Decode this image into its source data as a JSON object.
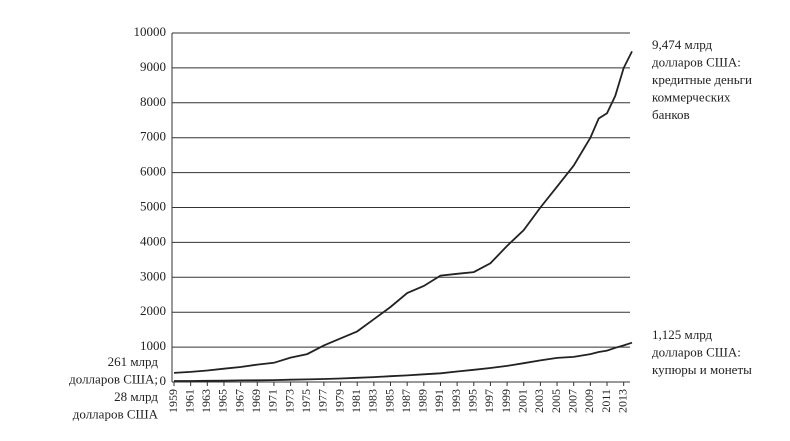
{
  "chart_data": {
    "type": "line",
    "x": [
      1959,
      1961,
      1963,
      1965,
      1967,
      1969,
      1971,
      1973,
      1975,
      1977,
      1979,
      1981,
      1983,
      1985,
      1987,
      1989,
      1991,
      1993,
      1995,
      1997,
      1999,
      2001,
      2003,
      2005,
      2007,
      2009,
      2010,
      2011,
      2012,
      2013,
      2014
    ],
    "series": [
      {
        "color": "#222222",
        "values": [
          261,
          290,
          330,
          380,
          430,
          500,
          550,
          700,
          800,
          1050,
          1250,
          1450,
          1800,
          2150,
          2550,
          2750,
          3050,
          3100,
          3150,
          3400,
          3900,
          4350,
          5000,
          5600,
          6200,
          7000,
          7550,
          7700,
          8200,
          9000,
          9474
        ]
      },
      {
        "color": "#222222",
        "values": [
          28,
          30,
          35,
          40,
          45,
          50,
          55,
          65,
          75,
          85,
          100,
          120,
          140,
          165,
          190,
          220,
          250,
          300,
          350,
          400,
          460,
          540,
          620,
          690,
          720,
          800,
          860,
          900,
          980,
          1050,
          1125
        ]
      }
    ],
    "xlim": [
      1959,
      2014
    ],
    "xticks": [
      1959,
      1961,
      1963,
      1965,
      1967,
      1969,
      1971,
      1973,
      1975,
      1977,
      1979,
      1981,
      1983,
      1985,
      1987,
      1989,
      1991,
      1993,
      1995,
      1997,
      1999,
      2001,
      2003,
      2005,
      2007,
      2009,
      2011,
      2013
    ],
    "ylim": [
      0,
      10000
    ],
    "yticks": [
      0,
      1000,
      2000,
      3000,
      4000,
      5000,
      6000,
      7000,
      8000,
      9000,
      10000
    ],
    "grid": true,
    "annotations": [
      [
        "9,474 млрд",
        "долларов США:",
        "кредитные деньги",
        "коммерческих",
        "банков"
      ],
      [
        "1,125 млрд",
        "долларов США:",
        "купюры и монеты"
      ],
      [
        "261 млрд",
        "долларов США;",
        "28 млрд",
        "долларов США"
      ]
    ]
  }
}
